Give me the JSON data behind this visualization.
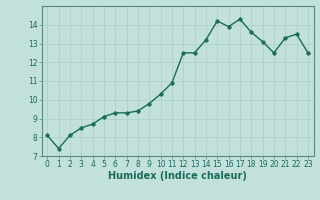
{
  "x": [
    0,
    1,
    2,
    3,
    4,
    5,
    6,
    7,
    8,
    9,
    10,
    11,
    12,
    13,
    14,
    15,
    16,
    17,
    18,
    19,
    20,
    21,
    22,
    23
  ],
  "y": [
    8.1,
    7.4,
    8.1,
    8.5,
    8.7,
    9.1,
    9.3,
    9.3,
    9.4,
    9.8,
    10.3,
    10.9,
    12.5,
    12.5,
    13.2,
    14.2,
    13.9,
    14.3,
    13.6,
    13.1,
    12.5,
    13.3,
    13.5,
    12.5
  ],
  "line_color": "#1a6b5a",
  "marker": "o",
  "markersize": 2.5,
  "linewidth": 1.0,
  "xlabel": "Humidex (Indice chaleur)",
  "xlabel_fontsize": 7,
  "ylim": [
    7,
    15
  ],
  "xlim": [
    -0.5,
    23.5
  ],
  "yticks": [
    7,
    8,
    9,
    10,
    11,
    12,
    13,
    14
  ],
  "xticks": [
    0,
    1,
    2,
    3,
    4,
    5,
    6,
    7,
    8,
    9,
    10,
    11,
    12,
    13,
    14,
    15,
    16,
    17,
    18,
    19,
    20,
    21,
    22,
    23
  ],
  "background_color": "#c2e0dc",
  "grid_color": "#afd0cc",
  "tick_fontsize": 5.5,
  "spine_color": "#5a8a7a"
}
